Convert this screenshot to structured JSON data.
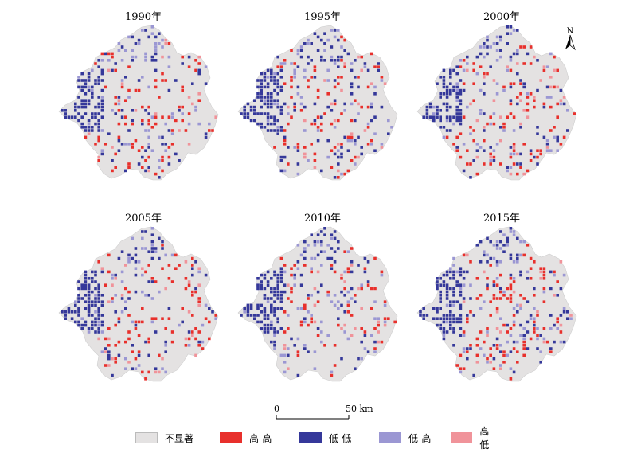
{
  "panels": [
    {
      "year_label": "1990年",
      "seed": 11
    },
    {
      "year_label": "1995年",
      "seed": 23
    },
    {
      "year_label": "2000年",
      "seed": 37
    },
    {
      "year_label": "2005年",
      "seed": 41
    },
    {
      "year_label": "2010年",
      "seed": 53
    },
    {
      "year_label": "2015年",
      "seed": 67
    }
  ],
  "north_arrow": {
    "label": "N"
  },
  "scale": {
    "start": "0",
    "end": "50 km"
  },
  "legend": [
    {
      "label": "不显著",
      "color": "#e4e2e2"
    },
    {
      "label": "高-高",
      "color": "#e8302c"
    },
    {
      "label": "低-低",
      "color": "#35389a"
    },
    {
      "label": "低-高",
      "color": "#9b97d3"
    },
    {
      "label": "高-低",
      "color": "#f0939a"
    }
  ],
  "colors": {
    "not_significant": "#e4e2e2",
    "high_high": "#e8302c",
    "low_low": "#35389a",
    "low_high": "#9b97d3",
    "high_low": "#f0939a"
  }
}
